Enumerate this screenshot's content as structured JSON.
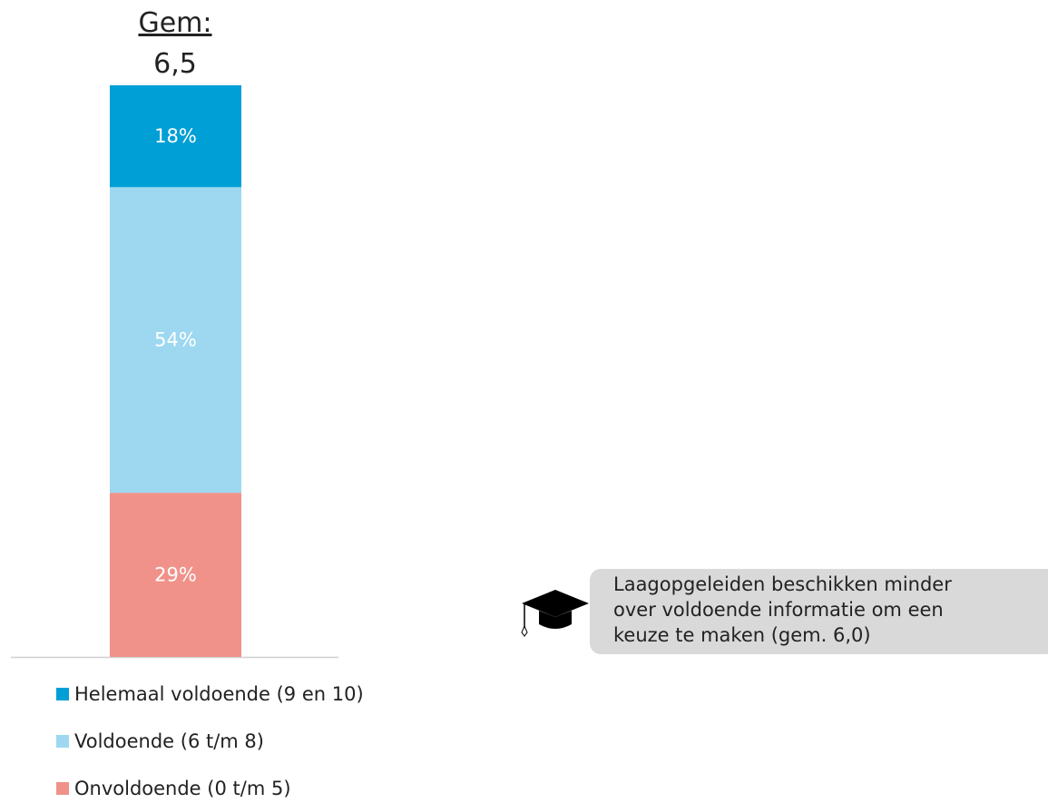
{
  "chart_data": {
    "type": "stacked_bar",
    "title": "Gem:",
    "subtitle": "6,5",
    "categories": [
      null
    ],
    "series": [
      {
        "name": "Helemaal voldoende (9 en 10)",
        "color": "#009fd6",
        "values": [
          18
        ],
        "value_labels": [
          "18%"
        ]
      },
      {
        "name": "Voldoende (6 t/m 8)",
        "color": "#9dd8f0",
        "values": [
          54
        ],
        "value_labels": [
          "54%"
        ]
      },
      {
        "name": "Onvoldoende (0 t/m 5)",
        "color": "#f0928a",
        "values": [
          29
        ],
        "value_labels": [
          "29%"
        ]
      }
    ],
    "annotation": [
      "Laagopgeleiden beschikken minder",
      "over voldoende informatie om een",
      "keuze te maken (gem. 6,0)"
    ]
  }
}
